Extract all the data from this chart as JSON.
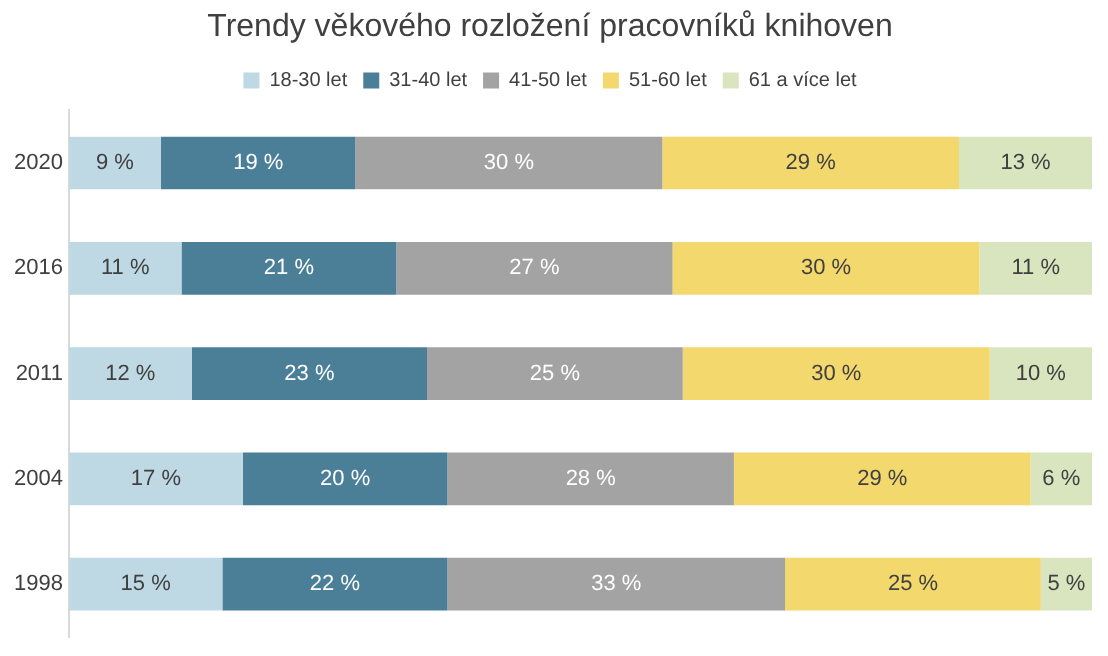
{
  "chart_data": {
    "type": "bar",
    "orientation": "horizontal",
    "stacked": true,
    "title": "Trendy věkového rozložení pracovníků knihoven",
    "categories": [
      "2020",
      "2016",
      "2011",
      "2004",
      "1998"
    ],
    "xlim": [
      0,
      100
    ],
    "tick_labels": "y",
    "grid": false,
    "legend": "top",
    "series": [
      {
        "name": "18-30 let",
        "color": "#bed8e4",
        "values": [
          9,
          11,
          12,
          17,
          15
        ],
        "value_labels": [
          "9 %",
          "11 %",
          "12 %",
          "17 %",
          "15 %"
        ]
      },
      {
        "name": "31-40 let",
        "color": "#4b7f98",
        "values": [
          19,
          21,
          23,
          20,
          22
        ],
        "value_labels": [
          "19 %",
          "21 %",
          "23 %",
          "20 %",
          "22 %"
        ]
      },
      {
        "name": "41-50 let",
        "color": "#a3a3a3",
        "values": [
          30,
          27,
          25,
          28,
          33
        ],
        "value_labels": [
          "30 %",
          "27 %",
          "25 %",
          "28 %",
          "33 %"
        ]
      },
      {
        "name": "51-60 let",
        "color": "#f3d86e",
        "values": [
          29,
          30,
          30,
          29,
          25
        ],
        "value_labels": [
          "29 %",
          "30 %",
          "30 %",
          "29 %",
          "25 %"
        ]
      },
      {
        "name": "61 a více let",
        "color": "#d8e5be",
        "values": [
          13,
          11,
          10,
          6,
          5
        ],
        "value_labels": [
          "13 %",
          "11 %",
          "10 %",
          "6 %",
          "5 %"
        ]
      }
    ]
  }
}
